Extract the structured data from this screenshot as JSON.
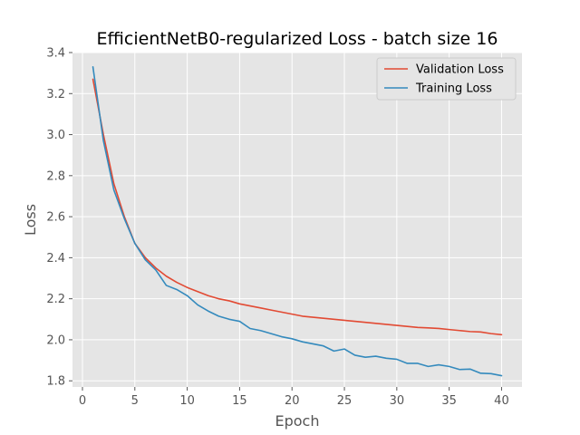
{
  "chart_data": {
    "type": "line",
    "title": "EfficientNetB0-regularized Loss - batch size 16",
    "xlabel": "Epoch",
    "ylabel": "Loss",
    "xlim": [
      -0.95,
      41.95
    ],
    "ylim": [
      1.77,
      3.4
    ],
    "xticks": [
      0,
      5,
      10,
      15,
      20,
      25,
      30,
      35,
      40
    ],
    "yticks": [
      1.8,
      2.0,
      2.2,
      2.4,
      2.6,
      2.8,
      3.0,
      3.2,
      3.4
    ],
    "ytick_labels": [
      "1.8",
      "2.0",
      "2.2",
      "2.4",
      "2.6",
      "2.8",
      "3.0",
      "3.2",
      "3.4"
    ],
    "grid": true,
    "legend_position": "top-right",
    "x": [
      1,
      2,
      3,
      4,
      5,
      6,
      7,
      8,
      9,
      10,
      11,
      12,
      13,
      14,
      15,
      16,
      17,
      18,
      19,
      20,
      21,
      22,
      23,
      24,
      25,
      26,
      27,
      28,
      29,
      30,
      31,
      32,
      33,
      34,
      35,
      36,
      37,
      38,
      39,
      40
    ],
    "series": [
      {
        "name": "Validation Loss",
        "color": "#E24A33",
        "values": [
          3.27,
          3.0,
          2.76,
          2.6,
          2.47,
          2.4,
          2.35,
          2.31,
          2.28,
          2.255,
          2.235,
          2.215,
          2.2,
          2.19,
          2.175,
          2.165,
          2.155,
          2.145,
          2.135,
          2.125,
          2.115,
          2.11,
          2.105,
          2.1,
          2.095,
          2.09,
          2.085,
          2.08,
          2.075,
          2.07,
          2.065,
          2.06,
          2.058,
          2.055,
          2.05,
          2.045,
          2.04,
          2.038,
          2.03,
          2.025
        ]
      },
      {
        "name": "Training Loss",
        "color": "#348ABD",
        "values": [
          3.33,
          2.97,
          2.73,
          2.59,
          2.47,
          2.39,
          2.34,
          2.265,
          2.245,
          2.215,
          2.17,
          2.14,
          2.115,
          2.1,
          2.09,
          2.055,
          2.045,
          2.03,
          2.015,
          2.005,
          1.99,
          1.98,
          1.97,
          1.945,
          1.955,
          1.925,
          1.915,
          1.92,
          1.91,
          1.905,
          1.885,
          1.885,
          1.87,
          1.878,
          1.87,
          1.855,
          1.857,
          1.837,
          1.835,
          1.825
        ]
      }
    ]
  }
}
